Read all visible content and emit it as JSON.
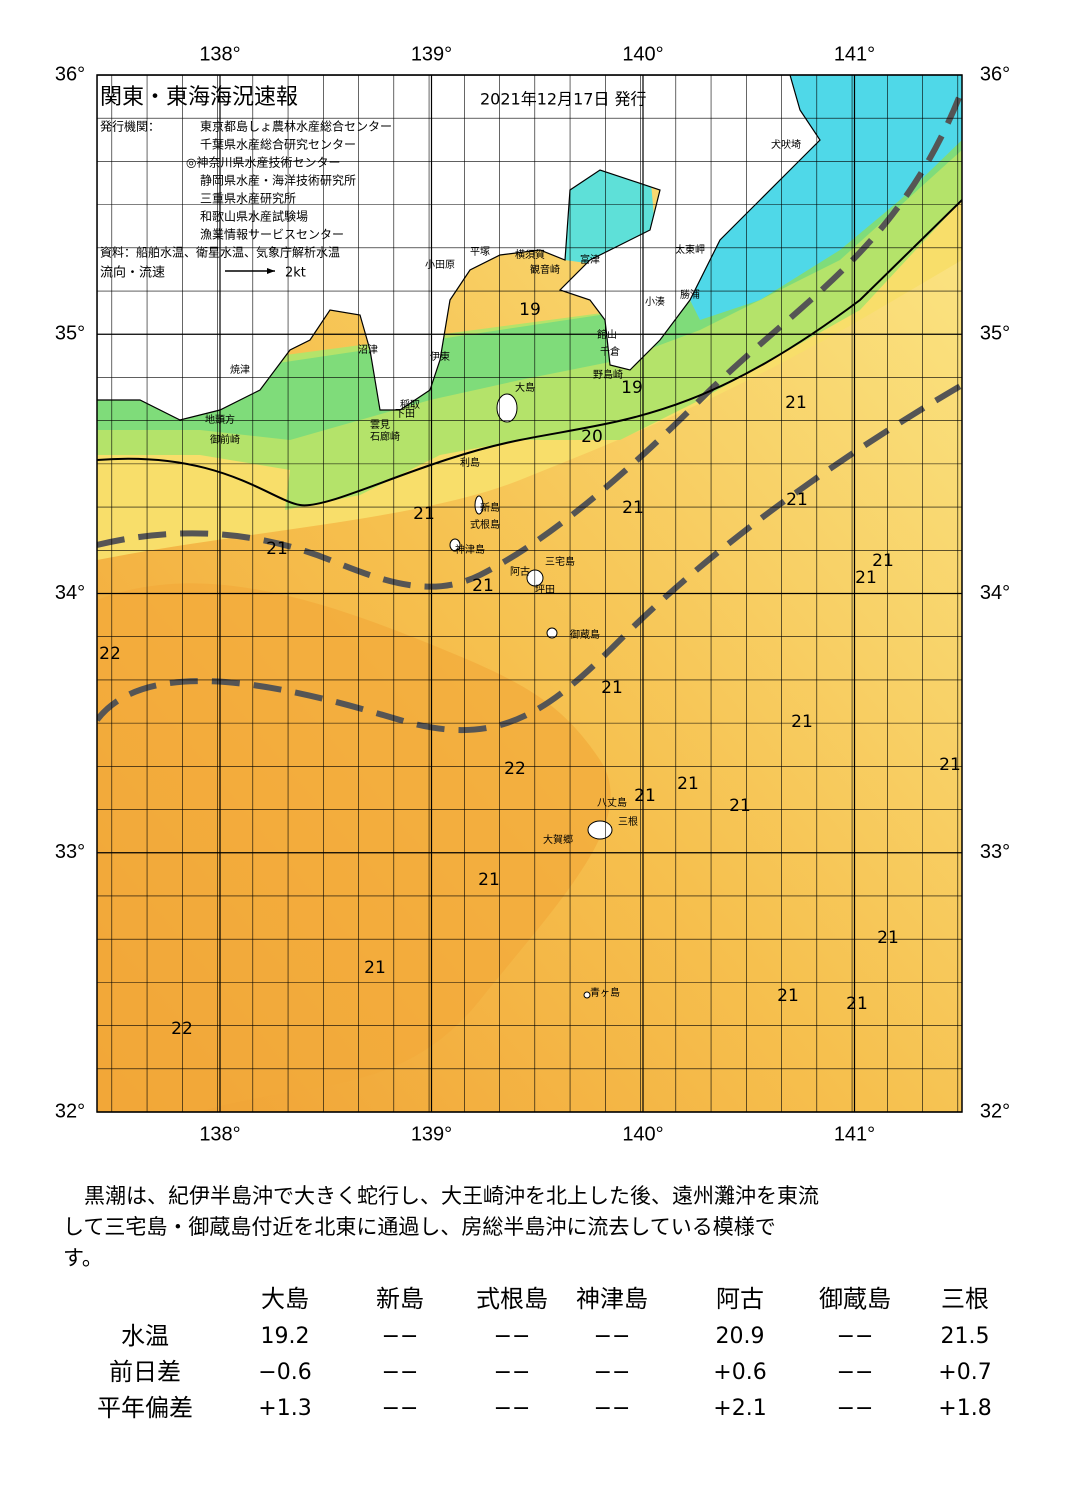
{
  "map": {
    "title": "関東・東海海況速報",
    "issue_date": "2021年12月17日 発行",
    "issuer_label": "発行機関：",
    "issuers": [
      "東京都島しょ農林水産総合センター",
      "千葉県水産総合研究センター",
      "◎神奈川県水産技術センター",
      "静岡県水産・海洋技術研究所",
      "三重県水産研究所",
      "和歌山県水産試験場",
      "漁業情報サービスセンター"
    ],
    "source": "資料：船舶水温、衛星水温、気象庁解析水温",
    "legend_label": "流向・流速",
    "legend_speed": "2kt",
    "lon_ticks": [
      {
        "value": 138,
        "label": "138°"
      },
      {
        "value": 139,
        "label": "139°"
      },
      {
        "value": 140,
        "label": "140°"
      },
      {
        "value": 141,
        "label": "141°"
      }
    ],
    "lat_ticks": [
      {
        "value": 36,
        "label": "36°"
      },
      {
        "value": 35,
        "label": "35°"
      },
      {
        "value": 34,
        "label": "34°"
      },
      {
        "value": 33,
        "label": "33°"
      },
      {
        "value": 32,
        "label": "32°"
      }
    ],
    "places": [
      "犬吠埼",
      "太東岬",
      "勝浦",
      "小湊",
      "富津",
      "観音崎",
      "横須賀",
      "平塚",
      "小田原",
      "館山",
      "千倉",
      "野島崎",
      "大島",
      "沼津",
      "伊東",
      "稲取",
      "下田",
      "雲見",
      "石廊崎",
      "焼津",
      "地頭方",
      "御前崎",
      "利島",
      "新島",
      "式根島",
      "神津島",
      "三宅島",
      "阿古",
      "坪田",
      "御蔵島",
      "八丈島",
      "三根",
      "大賀郷",
      "青ヶ島"
    ],
    "temperature_labels": [
      19,
      19,
      20,
      21,
      21,
      21,
      21,
      21,
      21,
      21,
      21,
      22,
      21,
      21,
      22,
      21,
      21,
      21,
      21,
      21,
      21,
      21,
      21,
      21,
      22
    ]
  },
  "summary": [
    "黒潮は、紀伊半島沖で大きく蛇行し、大王崎沖を北上した後、遠州灘沖を東流",
    "して三宅島・御蔵島付近を北東に通過し、房総半島沖に流去している模様で",
    "す。"
  ],
  "table": {
    "columns": [
      "大島",
      "新島",
      "式根島",
      "神津島",
      "阿古",
      "御蔵島",
      "三根"
    ],
    "rows": [
      {
        "label": "水温",
        "cells": [
          "19.2",
          "−−",
          "−−",
          "−−",
          "20.9",
          "−−",
          "21.5"
        ]
      },
      {
        "label": "前日差",
        "cells": [
          "−0.6",
          "−−",
          "−−",
          "−−",
          "+0.6",
          "−−",
          "+0.7"
        ]
      },
      {
        "label": "平年偏差",
        "cells": [
          "+1.3",
          "−−",
          "−−",
          "−−",
          "+2.1",
          "−−",
          "+1.8"
        ]
      }
    ]
  }
}
